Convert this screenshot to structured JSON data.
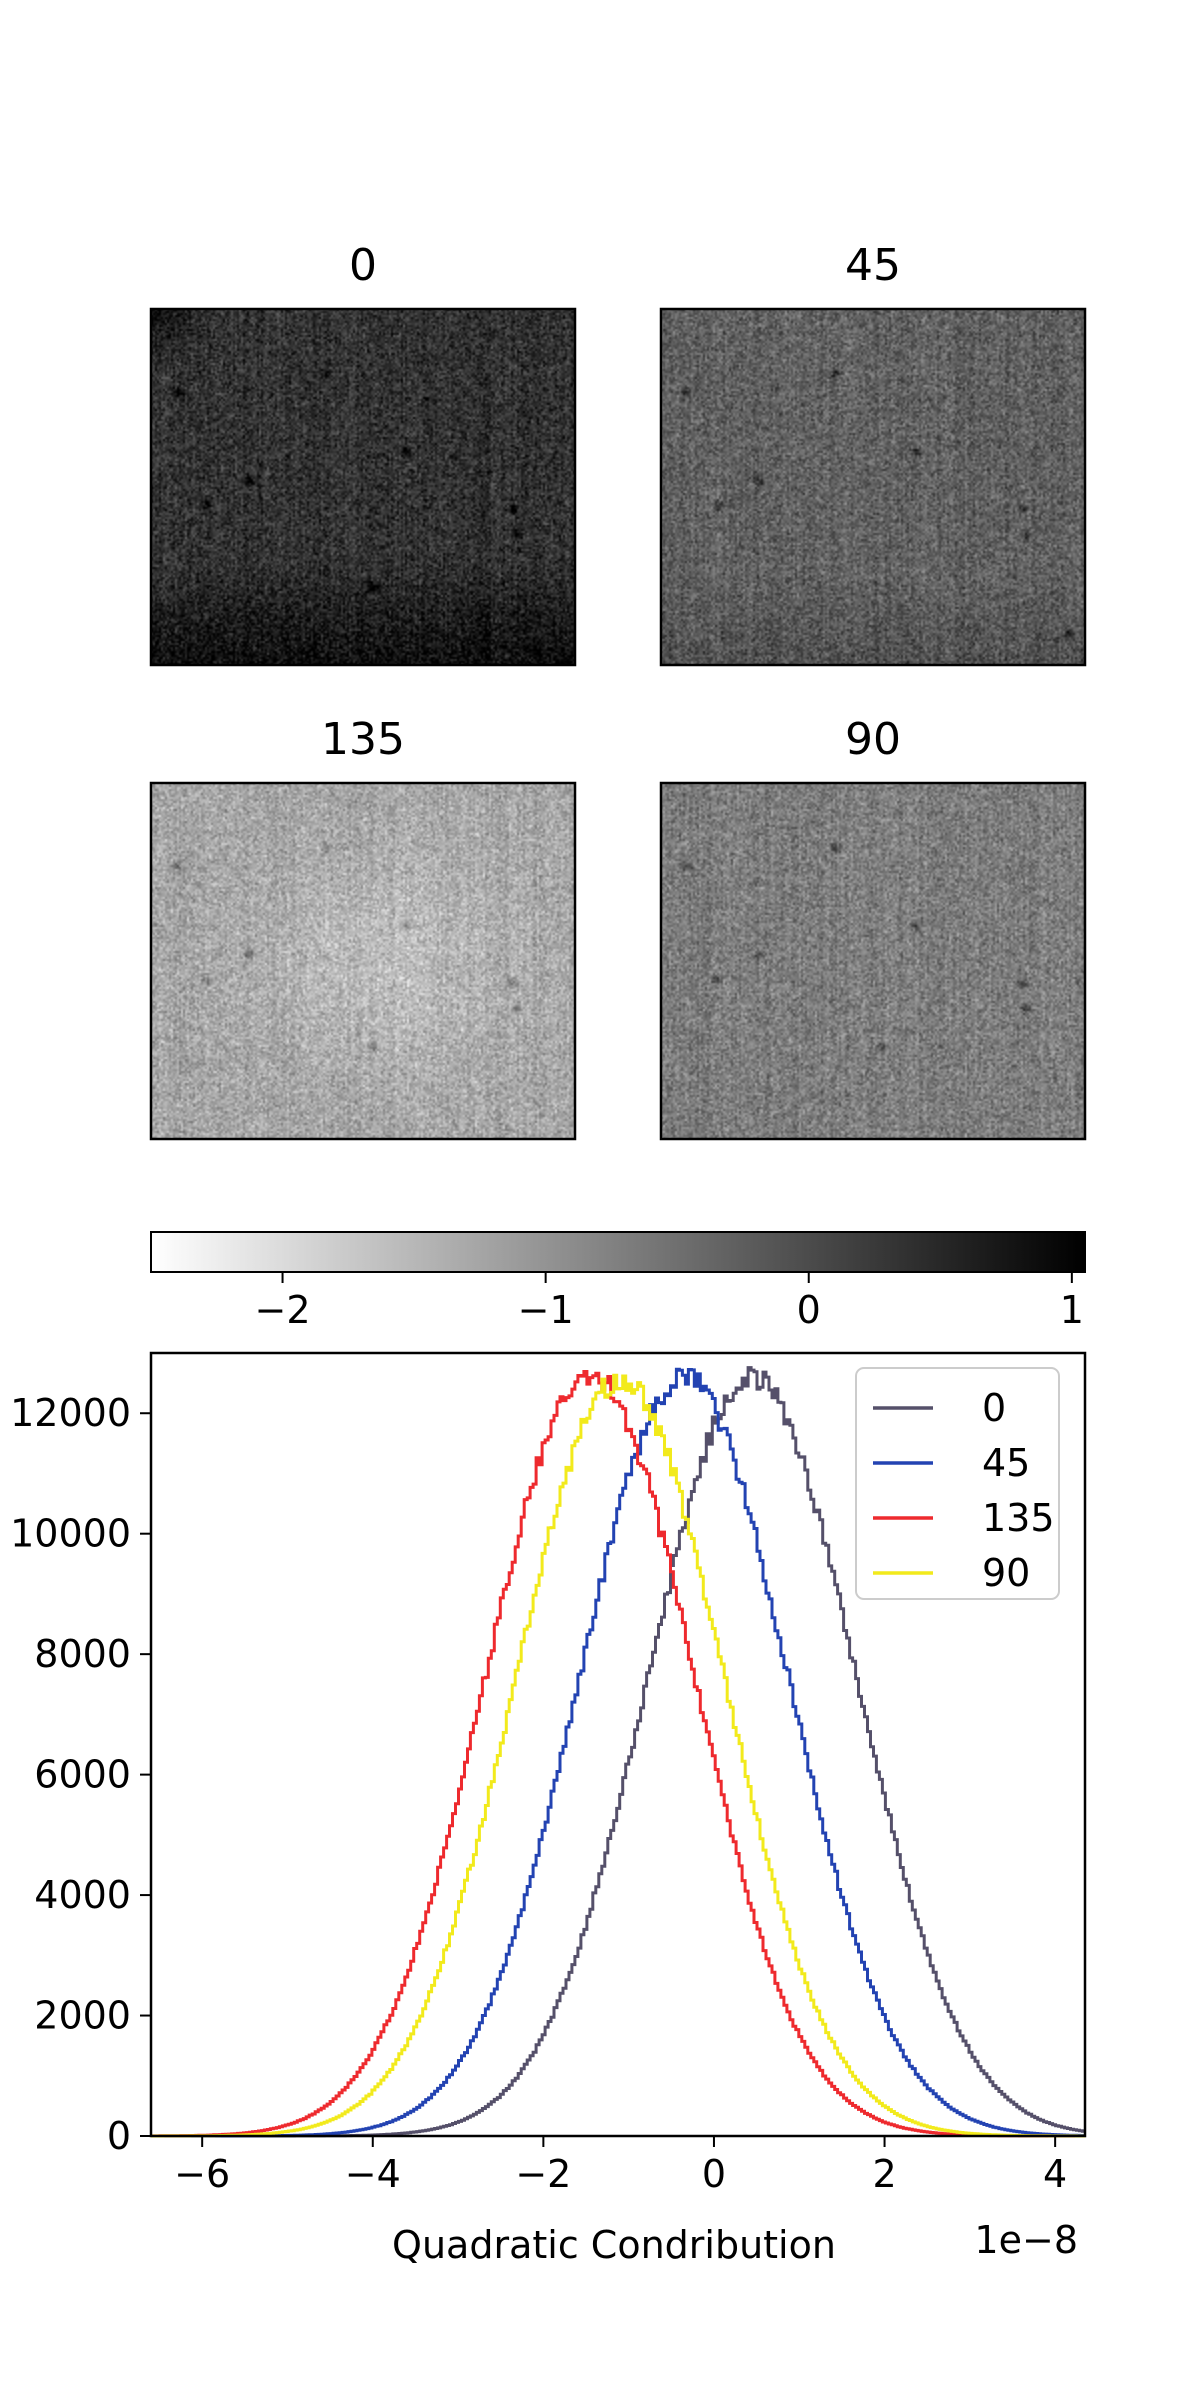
{
  "chart_data": [
    {
      "type": "heatmap",
      "title": "0",
      "colormap": "gray_r",
      "texture": "noise-image",
      "mean_value": 0.35,
      "spread": 0.55,
      "gradient": "darker toward the bottom and top-left corner",
      "dark_spots": [
        [
          0.06,
          0.23
        ],
        [
          0.41,
          0.18
        ],
        [
          0.6,
          0.4
        ],
        [
          0.85,
          0.56
        ],
        [
          0.86,
          0.63
        ],
        [
          0.13,
          0.55
        ],
        [
          0.23,
          0.48
        ],
        [
          0.52,
          0.78
        ]
      ]
    },
    {
      "type": "heatmap",
      "title": "45",
      "colormap": "gray_r",
      "texture": "noise-image",
      "mean_value": -0.3,
      "spread": 0.55,
      "gradient": "slightly darker toward the bottom",
      "dark_spots": [
        [
          0.06,
          0.23
        ],
        [
          0.41,
          0.18
        ],
        [
          0.6,
          0.4
        ],
        [
          0.85,
          0.56
        ],
        [
          0.86,
          0.63
        ],
        [
          0.13,
          0.55
        ],
        [
          0.23,
          0.48
        ],
        [
          0.96,
          0.91
        ]
      ]
    },
    {
      "type": "heatmap",
      "title": "135",
      "colormap": "gray_r",
      "texture": "noise-image",
      "mean_value": -1.25,
      "spread": 0.55,
      "gradient": "lightest in the centre",
      "dark_spots": [
        [
          0.06,
          0.23
        ],
        [
          0.41,
          0.18
        ],
        [
          0.6,
          0.4
        ],
        [
          0.85,
          0.56
        ],
        [
          0.86,
          0.63
        ],
        [
          0.13,
          0.55
        ],
        [
          0.23,
          0.48
        ],
        [
          0.52,
          0.74
        ]
      ]
    },
    {
      "type": "heatmap",
      "title": "90",
      "colormap": "gray_r",
      "texture": "noise-image",
      "mean_value": -0.7,
      "spread": 0.55,
      "gradient": "uniform",
      "dark_spots": [
        [
          0.06,
          0.23
        ],
        [
          0.41,
          0.18
        ],
        [
          0.6,
          0.4
        ],
        [
          0.85,
          0.56
        ],
        [
          0.86,
          0.63
        ],
        [
          0.13,
          0.55
        ],
        [
          0.23,
          0.48
        ],
        [
          0.52,
          0.74
        ]
      ]
    },
    {
      "type": "colorbar",
      "colormap": "gray_r",
      "range": [
        -2.5,
        1.05
      ],
      "ticks": [
        -2,
        -1,
        0,
        1
      ],
      "tick_labels": [
        "−2",
        "−1",
        "0",
        "1"
      ]
    },
    {
      "type": "line",
      "style": "step histogram",
      "xlabel": "Quadratic Condribution",
      "ylabel": "",
      "offset_label": "1e−8",
      "xlim": [
        -6.6,
        4.35
      ],
      "ylim": [
        0,
        13000
      ],
      "xticks": [
        -6,
        -4,
        -2,
        0,
        2,
        4
      ],
      "xtick_labels": [
        "−6",
        "−4",
        "−2",
        "0",
        "2",
        "4"
      ],
      "yticks": [
        0,
        2000,
        4000,
        6000,
        8000,
        10000,
        12000
      ],
      "ytick_labels": [
        "0",
        "2000",
        "4000",
        "6000",
        "8000",
        "10000",
        "12000"
      ],
      "legend_position": "top-right",
      "series": [
        {
          "name": "0",
          "color": "#55506a",
          "center": 0.45,
          "sigma": 1.22,
          "peak": 12600
        },
        {
          "name": "45",
          "color": "#2343b2",
          "center": -0.35,
          "sigma": 1.22,
          "peak": 12600
        },
        {
          "name": "135",
          "color": "#ee2a2e",
          "center": -1.45,
          "sigma": 1.22,
          "peak": 12650
        },
        {
          "name": "90",
          "color": "#f2ea1c",
          "center": -1.1,
          "sigma": 1.22,
          "peak": 12550
        }
      ]
    }
  ]
}
